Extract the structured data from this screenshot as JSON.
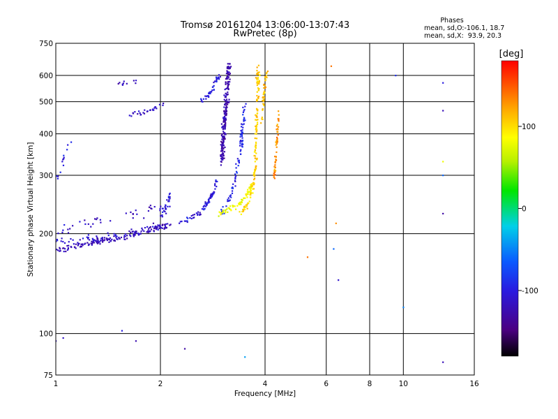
{
  "chart_data": {
    "type": "scatter",
    "title": "Tromsø 20161204 13:06:00-13:07:43",
    "subtitle": "RwPretec (8p)",
    "xlabel": "Frequency [MHz]",
    "ylabel": "Stationary phase Virtual Height [km]",
    "x_scale": "log",
    "y_scale": "log",
    "xlim": [
      1,
      16
    ],
    "ylim": [
      75,
      750
    ],
    "x_ticks": [
      1,
      2,
      4,
      6,
      8,
      10,
      16
    ],
    "x_tick_labels": [
      "1",
      "2",
      "4",
      "6",
      "8",
      "10",
      "16"
    ],
    "y_ticks": [
      75,
      100,
      200,
      300,
      400,
      500,
      600,
      750
    ],
    "y_tick_labels": [
      "75",
      "100",
      "200",
      "300",
      "400",
      "500",
      "600",
      "750"
    ],
    "grid": true,
    "phase_info": {
      "heading": "Phases",
      "line_o": "mean, sd,O:-106.1, 18.7",
      "line_x": "mean, sd,X:  93.9, 20.3"
    },
    "colorbar": {
      "label": "[deg]",
      "range": [
        -180,
        180
      ],
      "ticks": [
        100,
        0,
        -100
      ],
      "tick_labels": [
        "100",
        "0",
        "-100"
      ]
    },
    "traces": [
      {
        "pts": [
          [
            1.0,
            178
          ],
          [
            1.1,
            182
          ],
          [
            1.25,
            187
          ],
          [
            1.4,
            191
          ],
          [
            1.6,
            196
          ],
          [
            1.8,
            203
          ],
          [
            2.0,
            210
          ],
          [
            2.15,
            213
          ]
        ],
        "phase": -120,
        "spread": 0.03,
        "n": 150
      },
      {
        "pts": [
          [
            1.0,
            190
          ],
          [
            1.2,
            192
          ],
          [
            1.4,
            196
          ],
          [
            1.6,
            200
          ],
          [
            1.8,
            206
          ],
          [
            2.0,
            213
          ]
        ],
        "phase": -110,
        "spread": 0.035,
        "n": 60
      },
      {
        "pts": [
          [
            1.0,
            205
          ],
          [
            1.2,
            212
          ],
          [
            1.5,
            222
          ],
          [
            1.8,
            232
          ],
          [
            2.1,
            245
          ]
        ],
        "phase": -115,
        "spread": 0.06,
        "n": 40
      },
      {
        "pts": [
          [
            2.0,
            222
          ],
          [
            2.05,
            235
          ],
          [
            2.1,
            250
          ],
          [
            2.12,
            265
          ]
        ],
        "phase": -105,
        "spread": 0.04,
        "n": 25
      },
      {
        "pts": [
          [
            1.0,
            290
          ],
          [
            1.05,
            340
          ],
          [
            1.1,
            370
          ]
        ],
        "phase": -100,
        "spread": 0.04,
        "n": 14
      },
      {
        "pts": [
          [
            1.6,
            455
          ],
          [
            1.75,
            462
          ],
          [
            1.9,
            475
          ],
          [
            2.05,
            495
          ]
        ],
        "phase": -115,
        "spread": 0.02,
        "n": 28
      },
      {
        "pts": [
          [
            1.5,
            565
          ],
          [
            1.65,
            570
          ],
          [
            1.72,
            575
          ]
        ],
        "phase": -120,
        "spread": 0.02,
        "n": 10
      },
      {
        "pts": [
          [
            2.25,
            215
          ],
          [
            2.4,
            222
          ],
          [
            2.6,
            232
          ],
          [
            2.75,
            250
          ],
          [
            2.85,
            270
          ],
          [
            2.9,
            290
          ]
        ],
        "phase": -105,
        "spread": 0.03,
        "n": 70
      },
      {
        "pts": [
          [
            2.6,
            500
          ],
          [
            2.75,
            520
          ],
          [
            2.85,
            560
          ],
          [
            2.95,
            600
          ]
        ],
        "phase": -100,
        "spread": 0.03,
        "n": 45
      },
      {
        "pts": [
          [
            3.0,
            330
          ],
          [
            3.05,
            420
          ],
          [
            3.1,
            520
          ],
          [
            3.15,
            650
          ]
        ],
        "phase": -125,
        "spread": 0.035,
        "n": 220
      },
      {
        "pts": [
          [
            3.0,
            230
          ],
          [
            3.1,
            245
          ],
          [
            3.2,
            260
          ],
          [
            3.3,
            300
          ],
          [
            3.4,
            360
          ],
          [
            3.45,
            420
          ],
          [
            3.5,
            500
          ]
        ],
        "phase": -95,
        "spread": 0.03,
        "n": 90
      },
      {
        "pts": [
          [
            2.95,
            230
          ],
          [
            3.15,
            238
          ],
          [
            3.35,
            245
          ],
          [
            3.55,
            260
          ],
          [
            3.65,
            280
          ]
        ],
        "phase": 80,
        "spread": 0.025,
        "n": 70
      },
      {
        "pts": [
          [
            3.4,
            230
          ],
          [
            3.6,
            250
          ],
          [
            3.7,
            280
          ],
          [
            3.75,
            330
          ],
          [
            3.78,
            420
          ],
          [
            3.8,
            520
          ],
          [
            3.82,
            640
          ]
        ],
        "phase": 105,
        "spread": 0.025,
        "n": 150
      },
      {
        "pts": [
          [
            3.9,
            420
          ],
          [
            3.95,
            500
          ],
          [
            4.0,
            560
          ],
          [
            4.05,
            620
          ]
        ],
        "phase": 115,
        "spread": 0.02,
        "n": 40
      },
      {
        "pts": [
          [
            4.25,
            290
          ],
          [
            4.3,
            350
          ],
          [
            4.35,
            420
          ],
          [
            4.38,
            480
          ]
        ],
        "phase": 130,
        "spread": 0.015,
        "n": 55
      }
    ],
    "isolated_points": [
      [
        1.0,
        95,
        -110
      ],
      [
        1.05,
        97,
        -115
      ],
      [
        1.55,
        102,
        -100
      ],
      [
        1.7,
        95,
        -125
      ],
      [
        2.35,
        90,
        -130
      ],
      [
        3.5,
        85,
        -40
      ],
      [
        5.3,
        170,
        140
      ],
      [
        6.3,
        180,
        -60
      ],
      [
        6.5,
        145,
        -110
      ],
      [
        6.4,
        215,
        130
      ],
      [
        9.5,
        600,
        -90
      ],
      [
        10.0,
        120,
        -50
      ],
      [
        13,
        82,
        -120
      ],
      [
        13,
        570,
        -100
      ],
      [
        13,
        470,
        -120
      ],
      [
        13,
        300,
        -60
      ],
      [
        13,
        230,
        -130
      ],
      [
        13,
        330,
        80
      ],
      [
        6.2,
        640,
        140
      ]
    ]
  }
}
